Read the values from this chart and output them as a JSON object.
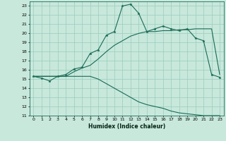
{
  "xlabel": "Humidex (Indice chaleur)",
  "bg_color": "#c8e8dc",
  "grid_color": "#99ccbb",
  "line_color": "#1a6b55",
  "hours": [
    0,
    1,
    2,
    3,
    4,
    5,
    6,
    7,
    8,
    9,
    10,
    11,
    12,
    13,
    14,
    15,
    16,
    17,
    18,
    19,
    20,
    21,
    22,
    23
  ],
  "line_main": [
    15.3,
    15.1,
    14.8,
    15.3,
    15.5,
    16.1,
    16.3,
    17.8,
    18.2,
    19.8,
    20.2,
    23.0,
    23.2,
    22.2,
    20.2,
    20.5,
    20.8,
    20.5,
    20.3,
    20.5,
    19.5,
    19.2,
    15.5,
    15.2
  ],
  "line_upper": [
    15.3,
    15.3,
    15.3,
    15.3,
    15.3,
    15.8,
    16.2,
    16.5,
    17.2,
    18.0,
    18.7,
    19.2,
    19.7,
    20.0,
    20.2,
    20.2,
    20.3,
    20.3,
    20.4,
    20.4,
    20.5,
    20.5,
    20.5,
    15.5
  ],
  "line_lower": [
    15.3,
    15.3,
    15.3,
    15.3,
    15.3,
    15.3,
    15.3,
    15.3,
    15.0,
    14.5,
    14.0,
    13.5,
    13.0,
    12.5,
    12.2,
    12.0,
    11.8,
    11.5,
    11.3,
    11.2,
    11.1,
    11.0,
    11.0,
    11.0
  ],
  "xlim": [
    -0.5,
    23.5
  ],
  "ylim": [
    11,
    23.5
  ],
  "yticks": [
    11,
    12,
    13,
    14,
    15,
    16,
    17,
    18,
    19,
    20,
    21,
    22,
    23
  ],
  "xticks": [
    0,
    1,
    2,
    3,
    4,
    5,
    6,
    7,
    8,
    9,
    10,
    11,
    12,
    13,
    14,
    15,
    16,
    17,
    18,
    19,
    20,
    21,
    22,
    23
  ]
}
